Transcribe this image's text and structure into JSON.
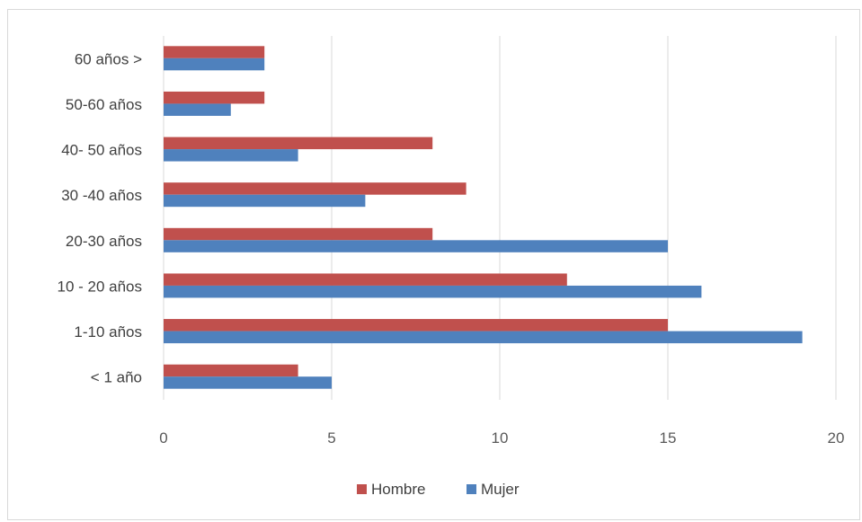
{
  "chart_data": {
    "type": "bar",
    "orientation": "horizontal",
    "categories": [
      "< 1 año",
      "1-10 años",
      "10 - 20 años",
      "20-30 años",
      "30 -40 años",
      "40- 50 años",
      "50-60 años",
      "60 años >"
    ],
    "series": [
      {
        "name": "Hombre",
        "color": "#c0504d",
        "values": [
          4,
          15,
          12,
          8,
          9,
          8,
          3,
          3
        ]
      },
      {
        "name": "Mujer",
        "color": "#4f81bd",
        "values": [
          5,
          19,
          16,
          15,
          6,
          4,
          2,
          3
        ]
      }
    ],
    "xlim": [
      0,
      20
    ],
    "xticks": [
      0,
      5,
      10,
      15,
      20
    ],
    "grid": true,
    "legend_position": "bottom",
    "title": "",
    "xlabel": "",
    "ylabel": ""
  }
}
